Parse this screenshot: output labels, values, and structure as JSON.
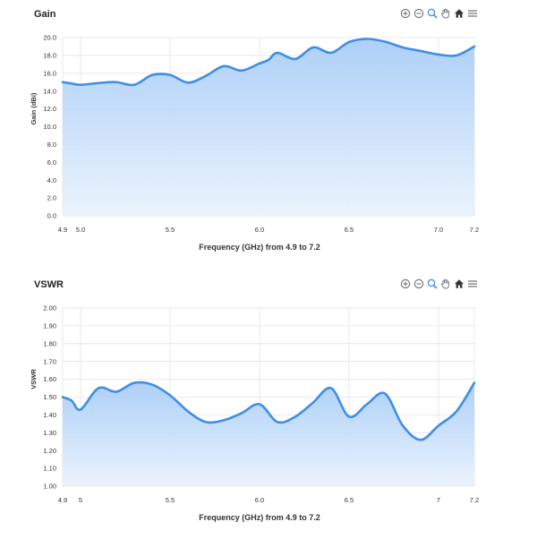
{
  "colors": {
    "line": "#3f8ee6",
    "fill_top": "#a9cdf7",
    "fill_bottom": "#e8f2fd",
    "grid": "#e3e3e3",
    "toolbar_icon": "#6e7079",
    "toolbar_active": "#3f8ee6"
  },
  "toolbar": {
    "icons": [
      "zoom-in-icon",
      "zoom-out-icon",
      "selection-zoom-icon",
      "pan-icon",
      "home-icon",
      "menu-icon"
    ]
  },
  "chart_data": [
    {
      "type": "area",
      "title": "Gain",
      "xlabel": "Frequency (GHz) from 4.9 to 7.2",
      "ylabel": "Gain (dBi)",
      "xlim": [
        4.9,
        7.2
      ],
      "ylim": [
        0,
        20
      ],
      "grid": true,
      "xticks": [
        {
          "value": 4.9,
          "label": "4.9"
        },
        {
          "value": 5.0,
          "label": "5.0"
        },
        {
          "value": 5.5,
          "label": "5.5"
        },
        {
          "value": 6.0,
          "label": "6.0"
        },
        {
          "value": 6.5,
          "label": "6.5"
        },
        {
          "value": 7.0,
          "label": "7.0"
        },
        {
          "value": 7.2,
          "label": "7.2"
        }
      ],
      "yticks": [
        {
          "value": 0,
          "label": "0.0"
        },
        {
          "value": 2,
          "label": "2.0"
        },
        {
          "value": 4,
          "label": "4.0"
        },
        {
          "value": 6,
          "label": "6.0"
        },
        {
          "value": 8,
          "label": "8.0"
        },
        {
          "value": 10,
          "label": "10.0"
        },
        {
          "value": 12,
          "label": "12.0"
        },
        {
          "value": 14,
          "label": "14.0"
        },
        {
          "value": 16,
          "label": "16.0"
        },
        {
          "value": 18,
          "label": "18.0"
        },
        {
          "value": 20,
          "label": "20.0"
        }
      ],
      "x": [
        4.9,
        4.95,
        5.0,
        5.1,
        5.2,
        5.3,
        5.4,
        5.5,
        5.6,
        5.7,
        5.8,
        5.9,
        6.0,
        6.05,
        6.1,
        6.2,
        6.3,
        6.4,
        6.5,
        6.6,
        6.7,
        6.8,
        6.9,
        7.0,
        7.1,
        7.2
      ],
      "y": [
        15.0,
        14.85,
        14.7,
        14.9,
        15.0,
        14.7,
        15.8,
        15.8,
        14.95,
        15.7,
        16.8,
        16.3,
        17.1,
        17.5,
        18.3,
        17.6,
        18.9,
        18.3,
        19.5,
        19.85,
        19.55,
        18.9,
        18.5,
        18.1,
        18.0,
        19.0
      ]
    },
    {
      "type": "area",
      "title": "VSWR",
      "xlabel": "Frequency (GHz) from 4.9 to 7.2",
      "ylabel": "VSWR",
      "xlim": [
        4.9,
        7.2
      ],
      "ylim": [
        1.0,
        2.0
      ],
      "grid": true,
      "xticks": [
        {
          "value": 4.9,
          "label": "4.9"
        },
        {
          "value": 5.0,
          "label": "5"
        },
        {
          "value": 5.5,
          "label": "5.5"
        },
        {
          "value": 6.0,
          "label": "6.0"
        },
        {
          "value": 6.5,
          "label": "6.5"
        },
        {
          "value": 7.0,
          "label": "7"
        },
        {
          "value": 7.2,
          "label": "7.2"
        }
      ],
      "yticks": [
        {
          "value": 1.0,
          "label": "1.00"
        },
        {
          "value": 1.1,
          "label": "1.10"
        },
        {
          "value": 1.2,
          "label": "1.20"
        },
        {
          "value": 1.3,
          "label": "1.30"
        },
        {
          "value": 1.4,
          "label": "1.40"
        },
        {
          "value": 1.5,
          "label": "1.50"
        },
        {
          "value": 1.6,
          "label": "1.60"
        },
        {
          "value": 1.7,
          "label": "1.70"
        },
        {
          "value": 1.8,
          "label": "1.80"
        },
        {
          "value": 1.9,
          "label": "1.90"
        },
        {
          "value": 2.0,
          "label": "2.00"
        }
      ],
      "x": [
        4.9,
        4.95,
        5.0,
        5.1,
        5.2,
        5.3,
        5.4,
        5.5,
        5.6,
        5.7,
        5.8,
        5.9,
        6.0,
        6.1,
        6.2,
        6.3,
        6.4,
        6.5,
        6.6,
        6.7,
        6.8,
        6.9,
        7.0,
        7.1,
        7.2
      ],
      "y": [
        1.5,
        1.48,
        1.43,
        1.55,
        1.53,
        1.58,
        1.57,
        1.51,
        1.42,
        1.36,
        1.37,
        1.41,
        1.46,
        1.36,
        1.39,
        1.47,
        1.55,
        1.39,
        1.46,
        1.52,
        1.34,
        1.26,
        1.34,
        1.42,
        1.58
      ]
    }
  ]
}
